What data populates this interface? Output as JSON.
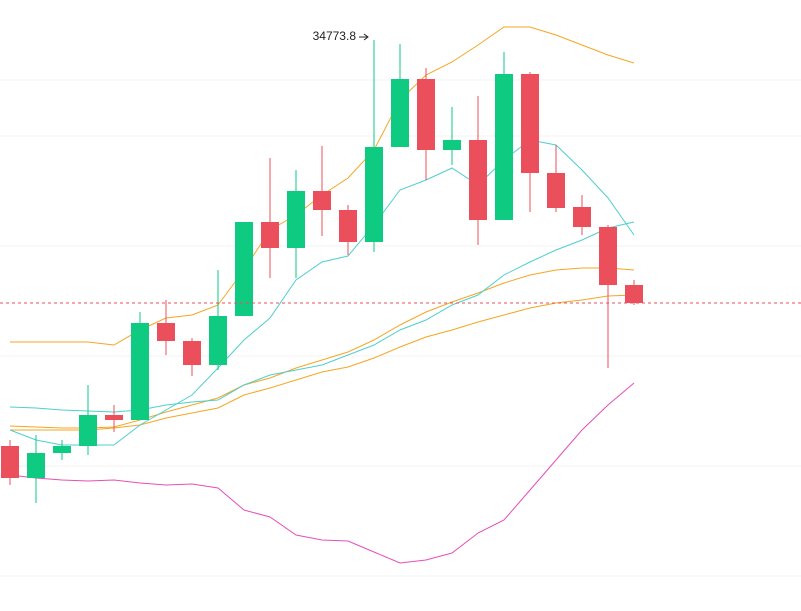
{
  "chart_data": {
    "type": "candlestick",
    "annotation": "34773.8",
    "ylim": [
      29064,
      35174
    ],
    "up_color": "#0ecb81",
    "down_color": "#ea4f5b",
    "open": [
      30714,
      30394,
      30644,
      30714,
      31024,
      30974,
      31944,
      31764,
      31524,
      32014,
      32954,
      32694,
      33264,
      33074,
      32754,
      33704,
      34384,
      33674,
      33774,
      32974,
      34434,
      33444,
      33104,
      32904,
      32324
    ],
    "high": [
      30774,
      30824,
      30774,
      31324,
      31124,
      32054,
      32174,
      31794,
      32474,
      32954,
      33594,
      33474,
      33714,
      33124,
      34773.8,
      34734,
      34494,
      34104,
      34214,
      34654,
      34454,
      33724,
      33224,
      32924,
      32374
    ],
    "low": [
      30324,
      30144,
      30574,
      30624,
      30854,
      30974,
      31624,
      31414,
      31474,
      32014,
      32394,
      32394,
      32814,
      32624,
      32654,
      33704,
      33374,
      33524,
      32724,
      32974,
      33054,
      33054,
      32824,
      31494,
      32124
    ],
    "close": [
      30394,
      30644,
      30714,
      31024,
      30974,
      31944,
      31764,
      31524,
      32014,
      32954,
      32694,
      33264,
      33074,
      32754,
      33704,
      34384,
      33674,
      33774,
      32974,
      34434,
      33444,
      33094,
      32904,
      32324,
      32144
    ],
    "series": [
      {
        "color": "#f5a623",
        "values": [
          31754,
          31754,
          31754,
          31754,
          31724,
          31874,
          31994,
          32024,
          32124,
          32474,
          32874,
          33024,
          33224,
          33394,
          33674,
          34174,
          34424,
          34554,
          34724,
          34904,
          34904,
          34824,
          34724,
          34624,
          34544
        ]
      },
      {
        "color": "#f5a623",
        "values": [
          30914,
          30904,
          30894,
          30894,
          30904,
          30974,
          31054,
          31124,
          31194,
          31324,
          31394,
          31494,
          31574,
          31654,
          31774,
          31924,
          32054,
          32154,
          32244,
          32344,
          32424,
          32474,
          32494,
          32494,
          32474
        ]
      },
      {
        "color": "#f5a623",
        "values": [
          30874,
          30874,
          30874,
          30874,
          30894,
          30924,
          30994,
          31044,
          31094,
          31224,
          31294,
          31374,
          31454,
          31504,
          31594,
          31704,
          31804,
          31874,
          31954,
          32024,
          32094,
          32144,
          32174,
          32214,
          32224
        ]
      },
      {
        "color": "#e64fb8",
        "values": [
          30424,
          30394,
          30374,
          30364,
          30374,
          30344,
          30324,
          30334,
          30294,
          30074,
          30004,
          29824,
          29774,
          29764,
          29654,
          29544,
          29574,
          29644,
          29844,
          29974,
          30274,
          30574,
          30874,
          31124,
          31344
        ]
      },
      {
        "color": "#4fcfcf",
        "values": [
          30874,
          30774,
          30724,
          30724,
          30724,
          30924,
          31074,
          31224,
          31494,
          31774,
          31994,
          32374,
          32554,
          32614,
          32924,
          33274,
          33374,
          33494,
          33324,
          33574,
          33774,
          33724,
          33474,
          33194,
          32824
        ]
      },
      {
        "color": "#4fcfcf",
        "values": [
          31104,
          31094,
          31074,
          31064,
          31054,
          31074,
          31124,
          31154,
          31174,
          31324,
          31424,
          31474,
          31524,
          31624,
          31724,
          31874,
          31974,
          32124,
          32224,
          32424,
          32554,
          32674,
          32774,
          32894,
          32954
        ]
      }
    ]
  }
}
